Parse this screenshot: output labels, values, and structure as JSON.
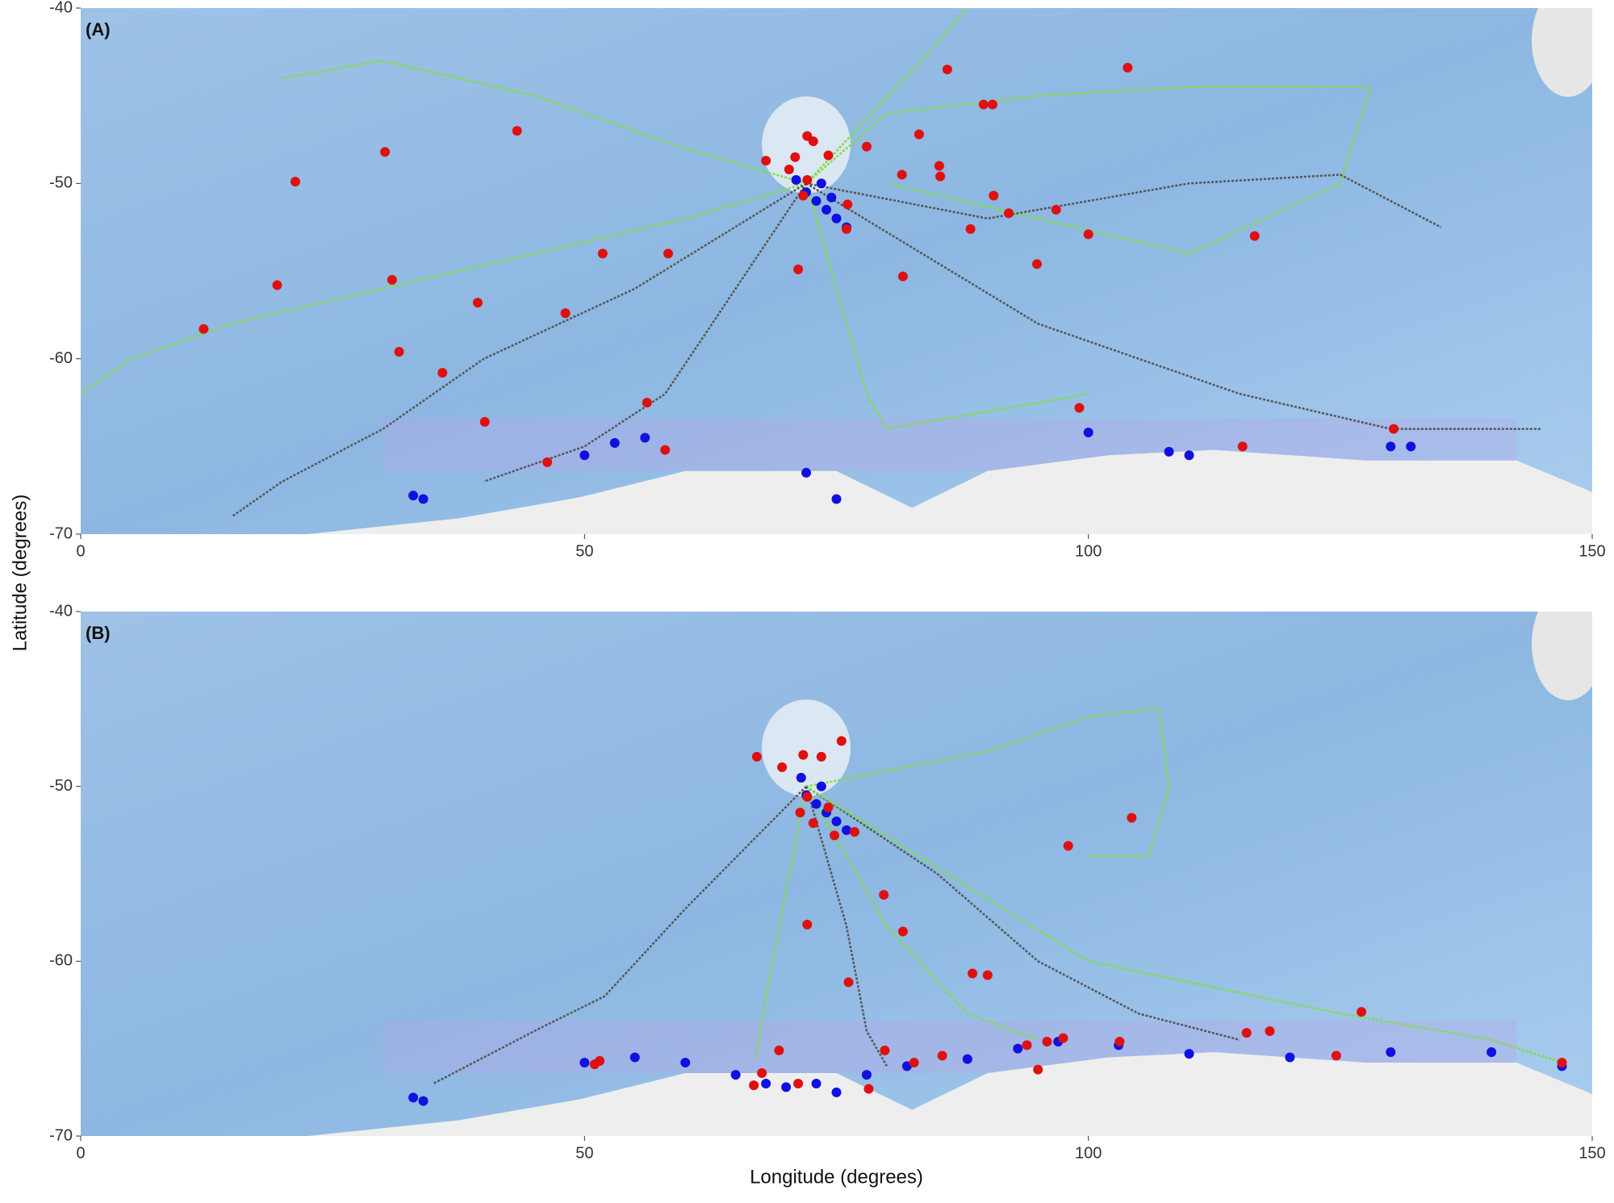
{
  "chart_data": [
    {
      "type": "map",
      "label": "(A)",
      "y_label": "Latitude (degrees)",
      "xlim": [
        0,
        150
      ],
      "ylim": [
        -70,
        -40
      ],
      "xticks": [
        0,
        50,
        100,
        150
      ],
      "yticks": [
        -70,
        -60,
        -50,
        -40
      ],
      "tracks": [
        {
          "color": "#7ee03c",
          "x": [
            72,
            60,
            45,
            30,
            15,
            5,
            0
          ],
          "y": [
            -50,
            -52,
            -54,
            -56,
            -58,
            -60,
            -62
          ]
        },
        {
          "color": "#555555",
          "x": [
            72,
            55,
            40,
            30,
            20,
            15
          ],
          "y": [
            -50,
            -56,
            -60,
            -64,
            -67,
            -69
          ]
        },
        {
          "color": "#7ee03c",
          "x": [
            72,
            80,
            95,
            110,
            128,
            125,
            110,
            95,
            80
          ],
          "y": [
            -50,
            -46,
            -45,
            -44.5,
            -44.5,
            -50,
            -54,
            -52,
            -50
          ]
        },
        {
          "color": "#555555",
          "x": [
            72,
            90,
            110,
            125,
            135
          ],
          "y": [
            -50,
            -52,
            -50,
            -49.5,
            -52.5
          ]
        },
        {
          "color": "#7ee03c",
          "x": [
            72,
            75,
            78,
            80,
            90,
            100
          ],
          "y": [
            -50,
            -56,
            -62,
            -64,
            -63,
            -62
          ]
        },
        {
          "color": "#555555",
          "x": [
            72,
            65,
            58,
            50,
            40
          ],
          "y": [
            -50,
            -56,
            -62,
            -65,
            -67
          ]
        },
        {
          "color": "#7ee03c",
          "x": [
            72,
            85,
            88
          ],
          "y": [
            -50,
            -42,
            -40
          ]
        },
        {
          "color": "#7ee03c",
          "x": [
            72,
            60,
            45,
            30,
            20
          ],
          "y": [
            -50,
            -48,
            -45,
            -43,
            -44
          ]
        },
        {
          "color": "#555555",
          "x": [
            72,
            95,
            115,
            130,
            145
          ],
          "y": [
            -50,
            -58,
            -62,
            -64,
            -64
          ]
        }
      ],
      "shelf_points": {
        "color": "#1010e0",
        "x": [
          72,
          73,
          74,
          75,
          73.5,
          76,
          71,
          74.5,
          33,
          34,
          50,
          53,
          56,
          72,
          75,
          100,
          108,
          110,
          130,
          132
        ],
        "y": [
          -50.5,
          -51,
          -51.5,
          -52,
          -50,
          -52.5,
          -49.8,
          -50.8,
          -67.8,
          -68,
          -65.5,
          -64.8,
          -64.5,
          -66.5,
          -68,
          -64.2,
          -65.3,
          -65.5,
          -65,
          -65
        ]
      },
      "end_points": {
        "color": "#e01010",
        "x": [
          30.2,
          21.3,
          43.3,
          19.5,
          30.9,
          12.2,
          31.6,
          39.4,
          48.1,
          51.8,
          58.3,
          35.9,
          40.1,
          46.3,
          56.2,
          58.0,
          68.0,
          70.3,
          70.9,
          72.1,
          72.7,
          72.1,
          71.7,
          74.2,
          76.1,
          76.0,
          78.0,
          71.2,
          83.2,
          81.5,
          85.2,
          85.3,
          86.0,
          89.6,
          90.5,
          81.6,
          88.3,
          90.6,
          92.1,
          96.8,
          100.0,
          94.9,
          103.9,
          116.5,
          99.1,
          115.3,
          130.3
        ],
        "y": [
          -48.2,
          -49.9,
          -47.0,
          -55.8,
          -55.5,
          -58.3,
          -59.6,
          -56.8,
          -57.4,
          -54.0,
          -54.0,
          -60.8,
          -63.6,
          -65.9,
          -62.5,
          -65.2,
          -48.7,
          -49.2,
          -48.5,
          -47.3,
          -47.6,
          -49.8,
          -50.7,
          -48.4,
          -51.2,
          -52.6,
          -47.9,
          -54.9,
          -47.2,
          -49.5,
          -49.0,
          -49.6,
          -43.5,
          -45.5,
          -45.5,
          -55.3,
          -52.6,
          -50.7,
          -51.7,
          -51.5,
          -52.9,
          -54.6,
          -43.4,
          -53.0,
          -62.8,
          -65.0,
          -64.0
        ]
      }
    },
    {
      "type": "map",
      "label": "(B)",
      "x_label": "Longitude (degrees)",
      "xlim": [
        0,
        150
      ],
      "ylim": [
        -70,
        -40
      ],
      "xticks": [
        0,
        50,
        100,
        150
      ],
      "yticks": [
        -70,
        -60,
        -50,
        -40
      ],
      "tracks": [
        {
          "color": "#7ee03c",
          "x": [
            72,
            70,
            68,
            67
          ],
          "y": [
            -50,
            -56,
            -62,
            -65.5
          ]
        },
        {
          "color": "#555555",
          "x": [
            72,
            60,
            52,
            45,
            35
          ],
          "y": [
            -50,
            -57,
            -62,
            -64,
            -67
          ]
        },
        {
          "color": "#7ee03c",
          "x": [
            72,
            90,
            100,
            107,
            108,
            106,
            100
          ],
          "y": [
            -50,
            -48,
            -46,
            -45.5,
            -50,
            -54,
            -54
          ]
        },
        {
          "color": "#555555",
          "x": [
            72,
            85,
            95,
            105,
            115
          ],
          "y": [
            -50,
            -55,
            -60,
            -63,
            -64.5
          ]
        },
        {
          "color": "#7ee03c",
          "x": [
            72,
            80,
            88,
            95
          ],
          "y": [
            -50,
            -58,
            -63,
            -64.5
          ]
        },
        {
          "color": "#7ee03c",
          "x": [
            72,
            100,
            125,
            140,
            147
          ],
          "y": [
            -50,
            -60,
            -63,
            -64.5,
            -65.8
          ]
        },
        {
          "color": "#555555",
          "x": [
            72,
            76,
            78,
            80
          ],
          "y": [
            -50,
            -58,
            -64,
            -66
          ]
        }
      ],
      "shelf_points": {
        "color": "#1010e0",
        "x": [
          72,
          73,
          74,
          75,
          76,
          73.5,
          71.5,
          33,
          34,
          50,
          55,
          60,
          65,
          68,
          70,
          73,
          75,
          78,
          82,
          88,
          93,
          97,
          103,
          110,
          120,
          130,
          140,
          147
        ],
        "y": [
          -50.5,
          -51,
          -51.5,
          -52,
          -52.5,
          -50,
          -49.5,
          -67.8,
          -68,
          -65.8,
          -65.5,
          -65.8,
          -66.5,
          -67,
          -67.2,
          -67,
          -67.5,
          -66.5,
          -66,
          -65.6,
          -65,
          -64.6,
          -64.8,
          -65.3,
          -65.5,
          -65.2,
          -65.2,
          -66
        ]
      },
      "end_points": {
        "color": "#e01010",
        "x": [
          67.1,
          69.6,
          71.7,
          73.5,
          75.5,
          72.1,
          72.7,
          74.2,
          71.4,
          74.8,
          76.8,
          104.3,
          98.0,
          79.7,
          72.1,
          81.6,
          76.2,
          88.5,
          90.0,
          127.1,
          115.7,
          118.0,
          51.5,
          51.0,
          69.3,
          67.6,
          79.8,
          85.5,
          82.7,
          93.9,
          95.9,
          97.5,
          95.0,
          103.1,
          124.6,
          147.0,
          66.8,
          71.2,
          78.2
        ],
        "y": [
          -48.3,
          -48.9,
          -48.2,
          -48.3,
          -47.4,
          -50.6,
          -52.1,
          -51.2,
          -51.5,
          -52.8,
          -52.6,
          -51.8,
          -53.4,
          -56.2,
          -57.9,
          -58.3,
          -61.2,
          -60.7,
          -60.8,
          -62.9,
          -64.1,
          -64.0,
          -65.7,
          -65.9,
          -65.1,
          -66.4,
          -65.1,
          -65.4,
          -65.8,
          -64.8,
          -64.6,
          -64.4,
          -66.2,
          -64.6,
          -65.4,
          -65.8,
          -67.1,
          -67.0,
          -67.3
        ]
      }
    }
  ]
}
